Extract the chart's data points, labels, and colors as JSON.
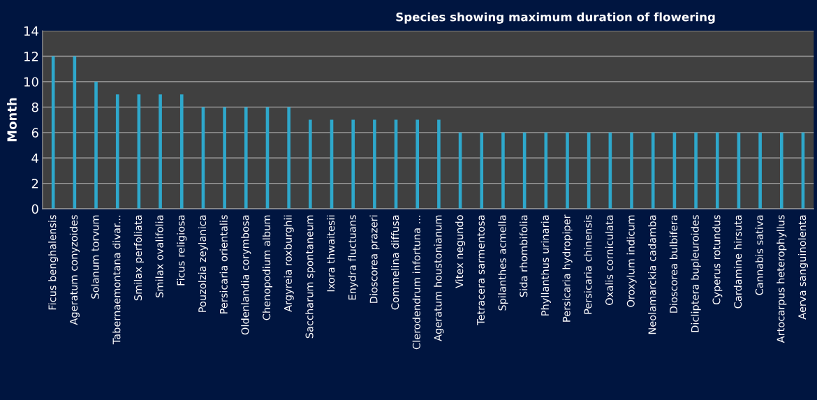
{
  "chart_data": {
    "type": "bar",
    "title": "Species showing maximum duration of flowering",
    "ylabel": "Month",
    "categories": [
      "Ficus benghalensis",
      "Ageratum conyzoides",
      "Solanum torvum",
      "Tabernaemontana divar...",
      "Smilax perfoliata",
      "Smilax ovalifolia",
      "Ficus religiosa",
      "Pouzolzia zeylanica",
      "Persicaria orientalis",
      "Oldenlandia corymbosa",
      "Chenopodium album",
      "Argyreia roxburghii",
      "Saccharum spontaneum",
      "Ixora thwaitesii",
      "Enydra fluctuans",
      "Dioscorea prazeri",
      "Commelina diffusa",
      "Clerodendrum infortuna ...",
      "Ageratum houstonianum",
      "Vitex negundo",
      "Tetracera sarmentosa",
      "Spilanthes acmella",
      "Sida rhombifolia",
      "Phyllanthus urinaria",
      "Persicaria hydropiper",
      "Persicaria chinensis",
      "Oxalis corniculata",
      "Oroxylum indicum",
      "Neolamarckia cadamba",
      "Dioscorea bulbifera",
      "Dicliptera bupleuroides",
      "Cyperus rotundus",
      "Cardamine hirsuta",
      "Cannabis sativa",
      "Artocarpus heterophyllus",
      "Aerva sanguinolenta"
    ],
    "values": [
      12,
      12,
      10,
      9,
      9,
      9,
      9,
      8,
      8,
      8,
      8,
      8,
      7,
      7,
      7,
      7,
      7,
      7,
      7,
      6,
      6,
      6,
      6,
      6,
      6,
      6,
      6,
      6,
      6,
      6,
      6,
      6,
      6,
      6,
      6,
      6
    ],
    "color": "#2ea8cc",
    "ylim": [
      0,
      14
    ],
    "yticks": [
      0,
      2,
      4,
      6,
      8,
      10,
      12,
      14
    ],
    "grid": "y"
  }
}
